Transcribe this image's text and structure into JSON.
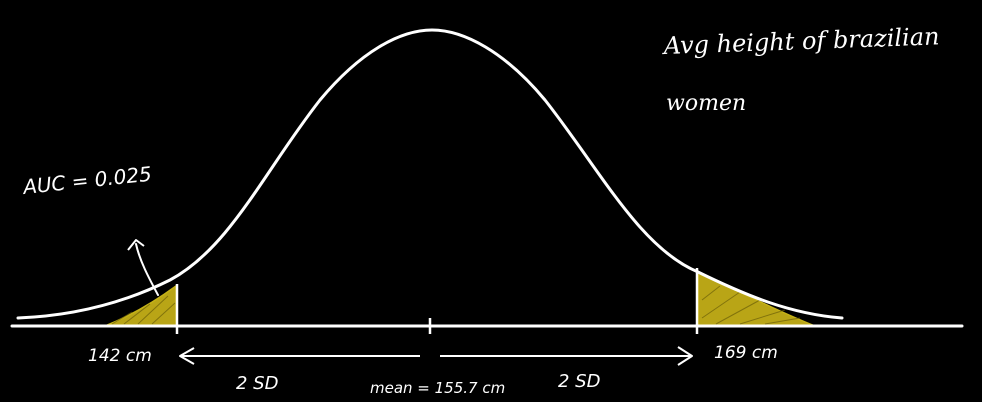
{
  "title_line1": "Avg height of brazilian",
  "title_line2": "women",
  "auc_label": "AUC = 0.025",
  "left_cutoff_label": "142 cm",
  "right_cutoff_label": "169 cm",
  "mean_label": "mean = 155.7 cm",
  "left_sd_label": "2 SD",
  "right_sd_label": "2 SD",
  "colors": {
    "background": "#000000",
    "ink": "#ffffff",
    "shade": "#d6c21a"
  }
}
